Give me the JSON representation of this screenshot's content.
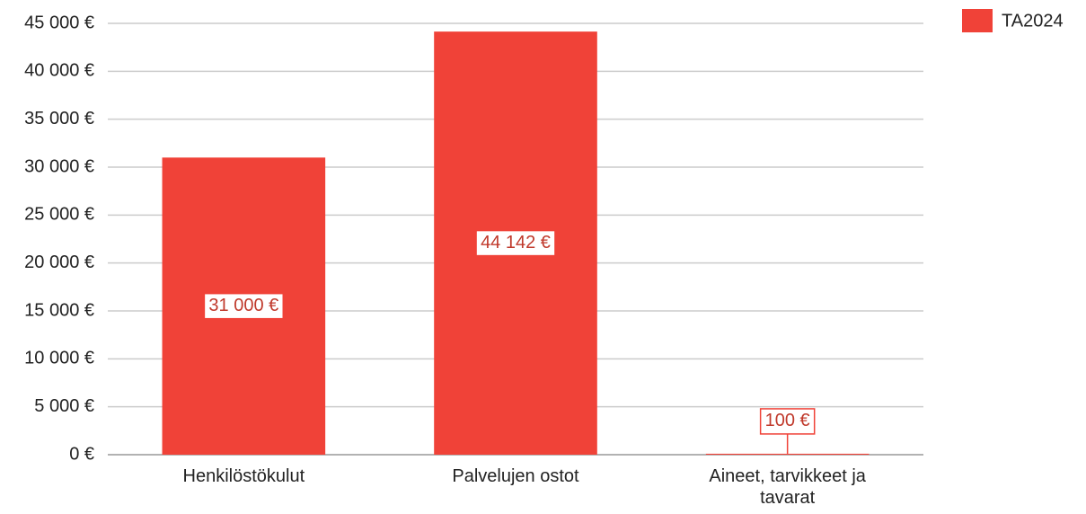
{
  "chart_data": {
    "type": "bar",
    "categories": [
      "Henkilöstökulut",
      "Palvelujen ostot",
      "Aineet, tarvikkeet ja tavarat"
    ],
    "series": [
      {
        "name": "TA2024",
        "color": "#f04238",
        "values": [
          31000,
          44142,
          100
        ],
        "value_labels": [
          "31 000 €",
          "44 142 €",
          "100 €"
        ]
      }
    ],
    "ylim": [
      0,
      45000
    ],
    "yticks": [
      {
        "value": 0,
        "label": "0 €"
      },
      {
        "value": 5000,
        "label": "5 000 €"
      },
      {
        "value": 10000,
        "label": "10 000 €"
      },
      {
        "value": 15000,
        "label": "15 000 €"
      },
      {
        "value": 20000,
        "label": "20 000 €"
      },
      {
        "value": 25000,
        "label": "25 000 €"
      },
      {
        "value": 30000,
        "label": "30 000 €"
      },
      {
        "value": 35000,
        "label": "35 000 €"
      },
      {
        "value": 40000,
        "label": "40 000 €"
      },
      {
        "value": 45000,
        "label": "45 000 €"
      }
    ],
    "grid": true,
    "legend": "top-right"
  }
}
